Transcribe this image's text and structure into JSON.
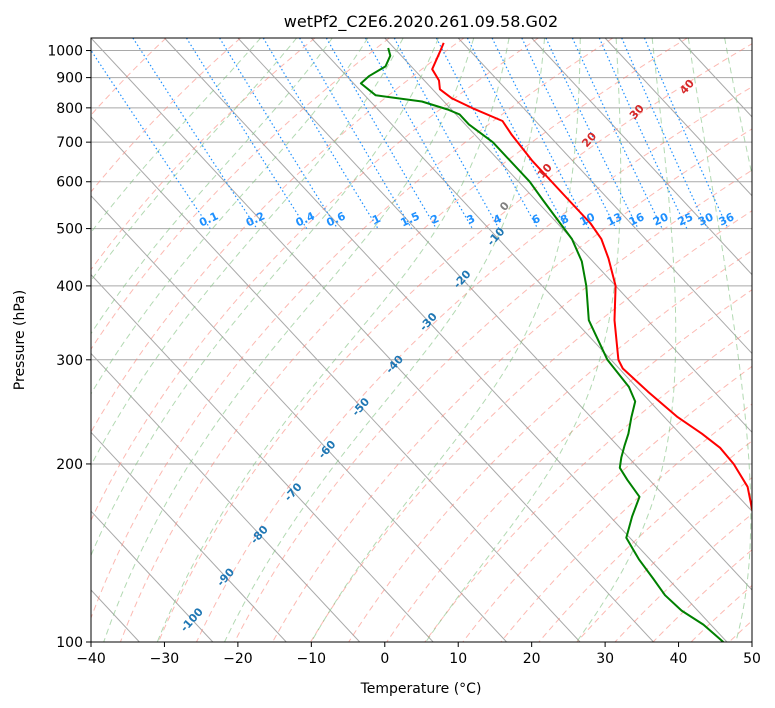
{
  "chart_data": {
    "type": "line",
    "title": "wetPf2_C2E6.2020.261.09.58.G02",
    "xlabel": "Temperature (°C)",
    "ylabel": "Pressure (hPa)",
    "xlim": [
      -40,
      50
    ],
    "ylim": [
      1050,
      100
    ],
    "y_scale": "log",
    "grid": true,
    "x_ticks": [
      -40,
      -30,
      -20,
      -10,
      0,
      10,
      20,
      30,
      40,
      50
    ],
    "x_tick_labels": [
      "−40",
      "−30",
      "−20",
      "−10",
      "0",
      "10",
      "20",
      "30",
      "40",
      "50"
    ],
    "y_ticks": [
      100,
      200,
      300,
      400,
      500,
      600,
      700,
      800,
      900,
      1000
    ],
    "y_tick_labels": [
      "100",
      "200",
      "300",
      "400",
      "500",
      "600",
      "700",
      "800",
      "900",
      "1000"
    ],
    "skew_deg_per_decade": 75,
    "series": [
      {
        "role": "temperature",
        "color": "#ff0000",
        "points": [
          [
            7.4,
            1030
          ],
          [
            6,
            1000
          ],
          [
            2.5,
            930
          ],
          [
            2.0,
            890
          ],
          [
            1.0,
            860
          ],
          [
            1.5,
            830
          ],
          [
            3.0,
            800
          ],
          [
            5.5,
            760
          ],
          [
            5.0,
            720
          ],
          [
            4.5,
            650
          ],
          [
            4.5,
            560
          ],
          [
            4.5,
            510
          ],
          [
            4.0,
            480
          ],
          [
            2.5,
            445
          ],
          [
            0,
            400
          ],
          [
            -4.5,
            350
          ],
          [
            -9.0,
            300
          ],
          [
            -9.5,
            290
          ],
          [
            -9.0,
            265
          ],
          [
            -8.2,
            240
          ],
          [
            -7.0,
            225
          ],
          [
            -6.3,
            213
          ],
          [
            -6.5,
            200
          ],
          [
            -7.5,
            183
          ],
          [
            -10.0,
            166
          ],
          [
            -12.5,
            148
          ],
          [
            -14.8,
            132
          ],
          [
            -16.5,
            118
          ],
          [
            -17.7,
            107
          ],
          [
            -19,
            100
          ]
        ]
      },
      {
        "role": "dewpoint",
        "color": "#008000",
        "points": [
          [
            -0.8,
            1010
          ],
          [
            -1.5,
            980
          ],
          [
            -3.5,
            940
          ],
          [
            -7.0,
            905
          ],
          [
            -9.0,
            880
          ],
          [
            -8.5,
            840
          ],
          [
            -3.0,
            820
          ],
          [
            -0.5,
            795
          ],
          [
            0.5,
            780
          ],
          [
            0.5,
            750
          ],
          [
            1.5,
            700
          ],
          [
            1.5,
            600
          ],
          [
            1.0,
            560
          ],
          [
            0.5,
            520
          ],
          [
            0,
            480
          ],
          [
            -1.5,
            440
          ],
          [
            -4.0,
            400
          ],
          [
            -8.0,
            350
          ],
          [
            -10.5,
            300
          ],
          [
            -11.0,
            270
          ],
          [
            -12.0,
            255
          ],
          [
            -14.5,
            240
          ],
          [
            -17.0,
            225
          ],
          [
            -19.0,
            215
          ],
          [
            -21.0,
            205
          ],
          [
            -22.5,
            197
          ],
          [
            -23.0,
            188
          ],
          [
            -23.5,
            176
          ],
          [
            -27.0,
            163
          ],
          [
            -30.5,
            150
          ],
          [
            -31.5,
            138
          ],
          [
            -32.0,
            128
          ],
          [
            -32.5,
            120
          ],
          [
            -32.2,
            113
          ],
          [
            -31.0,
            107
          ],
          [
            -30.5,
            100
          ]
        ]
      }
    ],
    "isotherms_c": [
      -130,
      -120,
      -110,
      -100,
      -90,
      -80,
      -70,
      -60,
      -50,
      -40,
      -30,
      -20,
      -10,
      0,
      10,
      20,
      30,
      40,
      50
    ],
    "dry_adiabat_labels": [
      "-100",
      "-90",
      "-80",
      "-70",
      "-60",
      "-50",
      "-40",
      "-30",
      "-20",
      "-10"
    ],
    "mixing_ratio_labels": [
      "0.1",
      "0.2",
      "0.4",
      "0.6",
      "1",
      "1.5",
      "2",
      "3",
      "4",
      "6",
      "8",
      "10",
      "13",
      "16",
      "20",
      "25",
      "30",
      "36"
    ],
    "moist_adiabat_labels": [
      "0",
      "10",
      "20",
      "30",
      "40"
    ],
    "colors": {
      "isotherm": "#a9a9a9",
      "dry_adiabat": "#fa8072",
      "moist_adiabat": "#7fbf7f",
      "mixing_ratio": "#1e90ff",
      "theta_label": "#1f77b4",
      "moist_label": "#d62728",
      "mixing_label": "#1e90ff"
    }
  }
}
